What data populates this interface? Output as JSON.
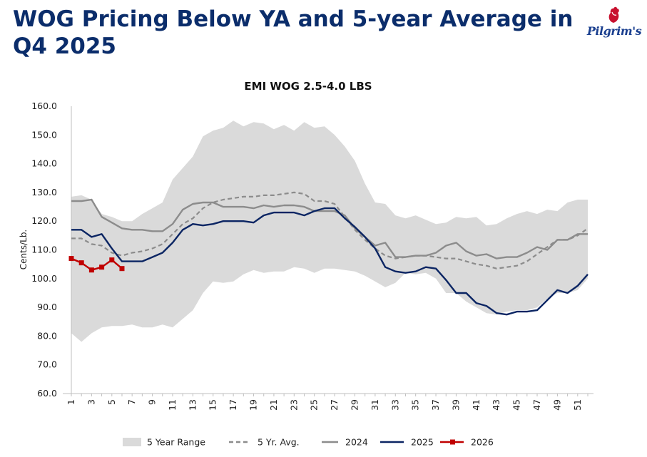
{
  "header": {
    "title": "WOG Pricing Below YA and 5-year Average in Q4 2025"
  },
  "logo": {
    "brand": "Pilgrim's",
    "accent_color": "#c8102e",
    "text_color": "#1a3f8f"
  },
  "chart_data": {
    "type": "line",
    "title": "EMI WOG 2.5-4.0 LBS",
    "xlabel": "",
    "ylabel": "Cents/Lb.",
    "ylim": [
      60,
      160
    ],
    "yticks": [
      "60.0",
      "70.0",
      "80.0",
      "90.0",
      "100.0",
      "110.0",
      "120.0",
      "130.0",
      "140.0",
      "150.0",
      "160.0"
    ],
    "xlim": [
      1,
      52
    ],
    "xticks": [
      "1",
      "3",
      "5",
      "7",
      "9",
      "11",
      "13",
      "15",
      "17",
      "19",
      "21",
      "23",
      "25",
      "27",
      "29",
      "31",
      "33",
      "35",
      "37",
      "39",
      "41",
      "43",
      "45",
      "47",
      "49",
      "51"
    ],
    "grid": false,
    "legend_position": "bottom",
    "range_band": {
      "name": "5 Year Range",
      "color": "#dadada",
      "x": [
        1,
        2,
        3,
        4,
        5,
        6,
        7,
        8,
        9,
        10,
        11,
        12,
        13,
        14,
        15,
        16,
        17,
        18,
        19,
        20,
        21,
        22,
        23,
        24,
        25,
        26,
        27,
        28,
        29,
        30,
        31,
        32,
        33,
        34,
        35,
        36,
        37,
        38,
        39,
        40,
        41,
        42,
        43,
        44,
        45,
        46,
        47,
        48,
        49,
        50,
        51,
        52
      ],
      "low": [
        81.0,
        78.0,
        81.0,
        83.0,
        83.5,
        83.5,
        84.0,
        83.0,
        83.0,
        84.0,
        83.0,
        86.0,
        89.0,
        95.0,
        99.0,
        98.5,
        99.0,
        101.5,
        103.0,
        102.0,
        102.5,
        102.5,
        104.0,
        103.5,
        102.0,
        103.5,
        103.5,
        103.0,
        102.5,
        101.0,
        99.0,
        97.0,
        98.5,
        102.0,
        101.5,
        102.0,
        100.0,
        95.0,
        95.0,
        92.0,
        90.0,
        88.0,
        87.5,
        88.5,
        89.0,
        89.0,
        90.0,
        93.0,
        95.0,
        95.0,
        96.0,
        100.0
      ],
      "high": [
        128.5,
        129.0,
        127.5,
        122.5,
        121.5,
        120.0,
        120.0,
        122.5,
        124.5,
        126.5,
        134.5,
        138.5,
        142.5,
        149.5,
        151.5,
        152.5,
        155.0,
        153.0,
        154.5,
        154.0,
        152.0,
        153.5,
        151.5,
        154.5,
        152.5,
        153.0,
        150.0,
        146.0,
        141.0,
        133.0,
        126.5,
        126.0,
        122.0,
        121.0,
        122.0,
        120.5,
        119.0,
        119.5,
        121.5,
        121.0,
        121.5,
        118.5,
        119.0,
        121.0,
        122.5,
        123.5,
        122.5,
        124.0,
        123.5,
        126.5,
        127.5,
        127.5
      ]
    },
    "series": [
      {
        "name": "5 Yr. Avg.",
        "color": "#8c8c8c",
        "style": "dashed",
        "x": [
          1,
          2,
          3,
          4,
          5,
          6,
          7,
          8,
          9,
          10,
          11,
          12,
          13,
          14,
          15,
          16,
          17,
          18,
          19,
          20,
          21,
          22,
          23,
          24,
          25,
          26,
          27,
          28,
          29,
          30,
          31,
          32,
          33,
          34,
          35,
          36,
          37,
          38,
          39,
          40,
          41,
          42,
          43,
          44,
          45,
          46,
          47,
          48,
          49,
          50,
          51,
          52
        ],
        "values": [
          114.0,
          114.0,
          112.0,
          111.5,
          109.0,
          108.0,
          109.0,
          109.5,
          110.5,
          112.0,
          115.5,
          119.0,
          121.0,
          124.5,
          126.5,
          127.5,
          128.0,
          128.5,
          128.5,
          129.0,
          129.0,
          129.5,
          130.0,
          129.5,
          127.0,
          127.0,
          126.0,
          121.5,
          117.0,
          113.5,
          110.5,
          108.0,
          107.0,
          107.5,
          108.0,
          108.0,
          107.5,
          107.0,
          107.0,
          106.0,
          105.0,
          104.5,
          103.5,
          104.0,
          104.5,
          106.0,
          108.5,
          111.0,
          113.5,
          113.5,
          115.0,
          117.5
        ]
      },
      {
        "name": "2024",
        "color": "#8c8c8c",
        "style": "solid",
        "x": [
          1,
          2,
          3,
          4,
          5,
          6,
          7,
          8,
          9,
          10,
          11,
          12,
          13,
          14,
          15,
          16,
          17,
          18,
          19,
          20,
          21,
          22,
          23,
          24,
          25,
          26,
          27,
          28,
          29,
          30,
          31,
          32,
          33,
          34,
          35,
          36,
          37,
          38,
          39,
          40,
          41,
          42,
          43,
          44,
          45,
          46,
          47,
          48,
          49,
          50,
          51,
          52
        ],
        "values": [
          127.0,
          127.0,
          127.5,
          121.5,
          119.5,
          117.5,
          117.0,
          117.0,
          116.5,
          116.5,
          119.0,
          124.0,
          126.0,
          126.5,
          126.5,
          125.0,
          125.0,
          125.0,
          124.5,
          125.5,
          125.0,
          125.5,
          125.5,
          125.0,
          123.5,
          123.5,
          123.5,
          122.0,
          117.5,
          114.5,
          111.5,
          112.5,
          107.5,
          107.5,
          108.0,
          108.0,
          109.0,
          111.5,
          112.5,
          109.5,
          108.0,
          108.5,
          107.0,
          107.5,
          107.5,
          109.0,
          111.0,
          110.0,
          113.5,
          113.5,
          115.5,
          115.5
        ]
      },
      {
        "name": "2025",
        "color": "#0b2563",
        "style": "solid",
        "x": [
          1,
          2,
          3,
          4,
          5,
          6,
          7,
          8,
          9,
          10,
          11,
          12,
          13,
          14,
          15,
          16,
          17,
          18,
          19,
          20,
          21,
          22,
          23,
          24,
          25,
          26,
          27,
          28,
          29,
          30,
          31,
          32,
          33,
          34,
          35,
          36,
          37,
          38,
          39,
          40,
          41,
          42,
          43,
          44,
          45,
          46,
          47,
          48,
          49,
          50,
          51,
          52
        ],
        "values": [
          117.0,
          117.0,
          114.5,
          115.5,
          110.5,
          106.0,
          106.0,
          106.0,
          107.5,
          109.0,
          112.5,
          117.0,
          119.0,
          118.5,
          119.0,
          120.0,
          120.0,
          120.0,
          119.5,
          122.0,
          123.0,
          123.0,
          123.0,
          122.0,
          123.5,
          124.5,
          124.5,
          121.0,
          118.0,
          114.5,
          110.5,
          104.0,
          102.5,
          102.0,
          102.5,
          104.0,
          103.5,
          99.5,
          95.0,
          95.0,
          91.5,
          90.5,
          88.0,
          87.5,
          88.5,
          88.5,
          89.0,
          92.5,
          96.0,
          95.0,
          97.5,
          101.5
        ]
      },
      {
        "name": "2026",
        "color": "#c00000",
        "style": "markers",
        "x": [
          1,
          2,
          3,
          4,
          5,
          6
        ],
        "values": [
          107.0,
          105.5,
          103.0,
          104.0,
          106.5,
          103.5
        ]
      }
    ]
  }
}
